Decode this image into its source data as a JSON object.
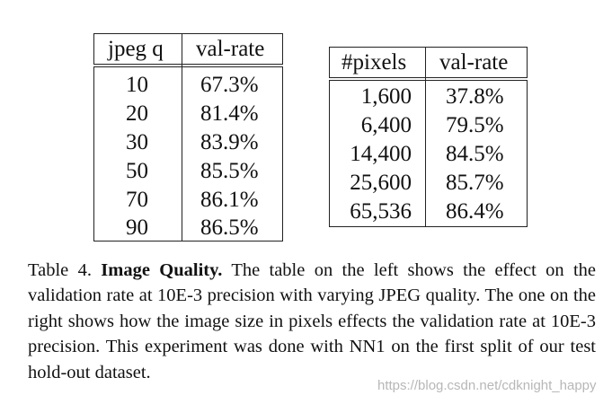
{
  "tables": {
    "left": {
      "headers": [
        "jpeg q",
        "val-rate"
      ],
      "rows": [
        [
          "10",
          "67.3%"
        ],
        [
          "20",
          "81.4%"
        ],
        [
          "30",
          "83.9%"
        ],
        [
          "50",
          "85.5%"
        ],
        [
          "70",
          "86.1%"
        ],
        [
          "90",
          "86.5%"
        ]
      ]
    },
    "right": {
      "headers": [
        "#pixels",
        "val-rate"
      ],
      "rows": [
        [
          "1,600",
          "37.8%"
        ],
        [
          "6,400",
          "79.5%"
        ],
        [
          "14,400",
          "84.5%"
        ],
        [
          "25,600",
          "85.7%"
        ],
        [
          "65,536",
          "86.4%"
        ]
      ]
    }
  },
  "caption": {
    "label": "Table 4.",
    "title": "Image Quality.",
    "text_part1": "The table on the left shows the effect on the validation rate at 10",
    "sc1": "E",
    "text_part2": "-3 precision with varying JPEG quality. The one on the right shows how the image size in pixels effects the validation rate at 10",
    "sc2": "E",
    "text_part3": "-3 precision. This experiment was done with NN1 on the first split of our test hold-out dataset."
  },
  "watermark": "https://blog.csdn.net/cdknight_happy"
}
